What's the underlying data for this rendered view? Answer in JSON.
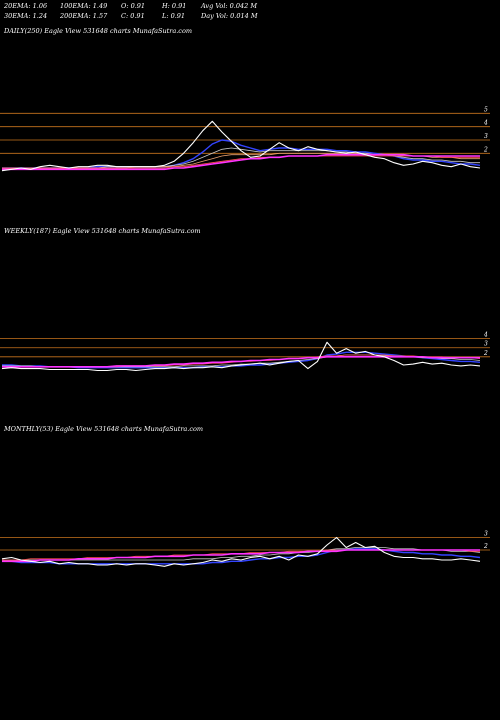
{
  "header": {
    "row1": [
      {
        "label": "20EMA: 1.06"
      },
      {
        "label": "100EMA: 1.49"
      },
      {
        "label": "O: 0.91"
      },
      {
        "label": "H: 0.91"
      },
      {
        "label": "Avg Vol: 0.042  M"
      }
    ],
    "row2": [
      {
        "label": "30EMA: 1.24"
      },
      {
        "label": "200EMA: 1.57"
      },
      {
        "label": "C: 0.91"
      },
      {
        "label": "L: 0.91"
      },
      {
        "label": "Day Vol: 0.014  M"
      }
    ]
  },
  "colors": {
    "background": "#000000",
    "level_line": "#c8741e",
    "price": "#ffffff",
    "ema_blue": "#3344ff",
    "ema_magenta": "#ff33ff",
    "ema_gray": "#c8c8c8",
    "ema_orange": "#e8a070",
    "ema_red": "#ff5050"
  },
  "chart_data": [
    {
      "type": "line",
      "panel": "daily",
      "title": "DAILY(250) Eagle  View  531648  charts MunafaSutra.com",
      "y_ticks": [
        "5",
        "4",
        "3",
        "2"
      ],
      "ylim": [
        0,
        6
      ],
      "levels": [
        5,
        4,
        3,
        2
      ],
      "series": [
        {
          "role": "price",
          "values": [
            0.7,
            0.8,
            0.9,
            0.8,
            1.0,
            1.1,
            1.0,
            0.9,
            1.0,
            1.0,
            1.1,
            1.1,
            1.0,
            1.0,
            1.0,
            1.0,
            1.0,
            1.1,
            1.4,
            2.0,
            2.8,
            3.7,
            4.4,
            3.6,
            2.9,
            2.2,
            1.7,
            1.8,
            2.3,
            2.8,
            2.4,
            2.2,
            2.5,
            2.3,
            2.2,
            2.1,
            2.0,
            2.1,
            1.9,
            1.7,
            1.6,
            1.3,
            1.1,
            1.2,
            1.4,
            1.3,
            1.1,
            1.0,
            1.2,
            1.0,
            0.9
          ]
        },
        {
          "role": "ema_blue",
          "values": [
            0.9,
            0.9,
            0.9,
            0.9,
            0.9,
            0.9,
            0.9,
            0.9,
            0.9,
            0.9,
            1.0,
            1.0,
            1.0,
            1.0,
            1.0,
            1.0,
            1.0,
            1.0,
            1.1,
            1.3,
            1.6,
            2.1,
            2.7,
            3.0,
            2.9,
            2.6,
            2.4,
            2.2,
            2.3,
            2.4,
            2.4,
            2.3,
            2.3,
            2.3,
            2.3,
            2.2,
            2.2,
            2.1,
            2.1,
            2.0,
            1.9,
            1.8,
            1.6,
            1.5,
            1.5,
            1.4,
            1.4,
            1.3,
            1.2,
            1.2,
            1.1
          ]
        },
        {
          "role": "ema_gray",
          "values": [
            0.9,
            0.9,
            0.9,
            0.9,
            0.9,
            0.9,
            0.9,
            0.9,
            0.9,
            0.9,
            0.9,
            1.0,
            1.0,
            1.0,
            1.0,
            1.0,
            1.0,
            1.0,
            1.1,
            1.2,
            1.4,
            1.7,
            2.0,
            2.3,
            2.4,
            2.3,
            2.2,
            2.1,
            2.2,
            2.2,
            2.2,
            2.2,
            2.2,
            2.2,
            2.2,
            2.1,
            2.1,
            2.0,
            2.0,
            1.9,
            1.9,
            1.8,
            1.7,
            1.6,
            1.6,
            1.5,
            1.5,
            1.4,
            1.4,
            1.3,
            1.3
          ]
        },
        {
          "role": "ema_orange",
          "values": [
            0.9,
            0.9,
            0.9,
            0.9,
            0.9,
            0.9,
            0.9,
            0.9,
            0.9,
            0.9,
            0.9,
            0.9,
            0.9,
            0.9,
            1.0,
            1.0,
            1.0,
            1.0,
            1.0,
            1.1,
            1.2,
            1.4,
            1.6,
            1.8,
            1.9,
            1.9,
            1.9,
            1.9,
            1.9,
            2.0,
            2.0,
            2.0,
            2.0,
            2.0,
            2.0,
            2.0,
            2.0,
            2.0,
            1.9,
            1.9,
            1.9,
            1.9,
            1.8,
            1.8,
            1.8,
            1.7,
            1.7,
            1.7,
            1.6,
            1.6,
            1.6
          ]
        },
        {
          "role": "ema_red",
          "values": [
            0.9,
            0.9,
            0.9,
            0.9,
            0.9,
            0.9,
            0.9,
            0.9,
            0.9,
            0.9,
            0.9,
            0.9,
            0.9,
            0.9,
            0.9,
            0.9,
            0.9,
            0.9,
            1.0,
            1.0,
            1.1,
            1.2,
            1.3,
            1.4,
            1.5,
            1.6,
            1.6,
            1.7,
            1.7,
            1.7,
            1.8,
            1.8,
            1.8,
            1.8,
            1.8,
            1.8,
            1.8,
            1.8,
            1.8,
            1.8,
            1.8,
            1.8,
            1.8,
            1.8,
            1.8,
            1.8,
            1.7,
            1.7,
            1.7,
            1.7,
            1.7
          ]
        },
        {
          "role": "ema_magenta",
          "values": [
            0.8,
            0.8,
            0.8,
            0.8,
            0.8,
            0.8,
            0.8,
            0.8,
            0.8,
            0.8,
            0.8,
            0.8,
            0.8,
            0.8,
            0.8,
            0.8,
            0.8,
            0.8,
            0.9,
            0.9,
            1.0,
            1.1,
            1.2,
            1.3,
            1.4,
            1.5,
            1.6,
            1.6,
            1.7,
            1.7,
            1.8,
            1.8,
            1.8,
            1.8,
            1.9,
            1.9,
            1.9,
            1.9,
            1.9,
            1.9,
            1.9,
            1.9,
            1.9,
            1.8,
            1.8,
            1.8,
            1.8,
            1.8,
            1.8,
            1.8,
            1.8
          ]
        }
      ]
    },
    {
      "type": "line",
      "panel": "weekly",
      "title": "WEEKLY(187) Eagle  View  531648  charts MunafaSutra.com",
      "y_ticks": [
        "4",
        "3",
        "2"
      ],
      "ylim": [
        0,
        5.5
      ],
      "levels": [
        4,
        3,
        2
      ],
      "series": [
        {
          "role": "price",
          "values": [
            0.7,
            0.8,
            0.7,
            0.7,
            0.7,
            0.6,
            0.6,
            0.6,
            0.6,
            0.6,
            0.5,
            0.5,
            0.6,
            0.6,
            0.5,
            0.6,
            0.7,
            0.7,
            0.8,
            0.7,
            0.8,
            0.8,
            0.9,
            0.8,
            1.0,
            1.1,
            1.2,
            1.3,
            1.1,
            1.3,
            1.5,
            1.6,
            0.7,
            1.5,
            3.6,
            2.4,
            2.9,
            2.4,
            2.6,
            2.2,
            2.0,
            1.6,
            1.1,
            1.2,
            1.4,
            1.2,
            1.3,
            1.1,
            1.0,
            1.1,
            1.0
          ]
        },
        {
          "role": "ema_blue",
          "values": [
            1.1,
            1.1,
            1.0,
            1.0,
            1.0,
            0.9,
            0.9,
            0.9,
            0.8,
            0.8,
            0.8,
            0.8,
            0.8,
            0.8,
            0.8,
            0.8,
            0.8,
            0.8,
            0.8,
            0.8,
            0.8,
            0.9,
            0.9,
            0.9,
            1.0,
            1.0,
            1.1,
            1.1,
            1.2,
            1.3,
            1.4,
            1.5,
            1.6,
            1.8,
            2.2,
            2.3,
            2.5,
            2.5,
            2.5,
            2.4,
            2.3,
            2.2,
            2.1,
            2.0,
            1.9,
            1.8,
            1.7,
            1.6,
            1.5,
            1.5,
            1.4
          ]
        },
        {
          "role": "ema_gray",
          "values": [
            1.0,
            1.0,
            1.0,
            1.0,
            0.9,
            0.9,
            0.9,
            0.9,
            0.9,
            0.9,
            0.9,
            0.9,
            0.9,
            0.9,
            0.9,
            0.9,
            0.9,
            0.9,
            0.9,
            1.0,
            1.0,
            1.0,
            1.0,
            1.1,
            1.1,
            1.2,
            1.2,
            1.3,
            1.3,
            1.4,
            1.5,
            1.6,
            1.7,
            1.8,
            2.0,
            2.1,
            2.2,
            2.2,
            2.2,
            2.2,
            2.1,
            2.1,
            2.0,
            2.0,
            1.9,
            1.9,
            1.8,
            1.8,
            1.7,
            1.7,
            1.6
          ]
        },
        {
          "role": "ema_red",
          "values": [
            0.9,
            0.9,
            0.9,
            0.9,
            0.9,
            0.9,
            0.9,
            0.9,
            0.9,
            0.9,
            0.9,
            0.9,
            0.9,
            1.0,
            1.0,
            1.0,
            1.0,
            1.0,
            1.1,
            1.1,
            1.2,
            1.2,
            1.3,
            1.3,
            1.4,
            1.5,
            1.5,
            1.6,
            1.6,
            1.7,
            1.8,
            1.8,
            1.9,
            2.0,
            2.1,
            2.1,
            2.2,
            2.2,
            2.2,
            2.2,
            2.2,
            2.1,
            2.1,
            2.1,
            2.0,
            2.0,
            2.0,
            1.9,
            1.9,
            1.9,
            1.8
          ]
        },
        {
          "role": "ema_magenta",
          "values": [
            0.9,
            0.9,
            0.9,
            0.9,
            0.9,
            0.9,
            0.9,
            0.9,
            0.9,
            0.9,
            0.9,
            0.9,
            1.0,
            1.0,
            1.0,
            1.0,
            1.1,
            1.1,
            1.2,
            1.2,
            1.3,
            1.3,
            1.4,
            1.4,
            1.5,
            1.5,
            1.6,
            1.6,
            1.7,
            1.7,
            1.8,
            1.8,
            1.9,
            1.9,
            2.0,
            2.0,
            2.0,
            2.0,
            2.0,
            2.0,
            2.0,
            2.0,
            2.0,
            2.0,
            2.0,
            1.9,
            1.9,
            1.9,
            1.9,
            1.9,
            1.9
          ]
        }
      ]
    },
    {
      "type": "line",
      "panel": "monthly",
      "title": "MONTHLY(53) Eagle  View  531648  charts MunafaSutra.com",
      "y_ticks": [
        "3",
        "2"
      ],
      "ylim": [
        0,
        4
      ],
      "levels": [
        3,
        2
      ],
      "series": [
        {
          "role": "price",
          "values": [
            1.3,
            1.4,
            1.2,
            1.1,
            1.0,
            1.1,
            0.9,
            1.0,
            0.9,
            0.9,
            0.8,
            0.8,
            0.9,
            0.8,
            0.9,
            0.9,
            0.8,
            0.7,
            0.9,
            0.8,
            0.9,
            1.0,
            1.2,
            1.1,
            1.3,
            1.2,
            1.4,
            1.5,
            1.3,
            1.5,
            1.2,
            1.6,
            1.5,
            1.7,
            2.4,
            3.0,
            2.2,
            2.6,
            2.2,
            2.3,
            1.8,
            1.5,
            1.4,
            1.4,
            1.3,
            1.3,
            1.2,
            1.2,
            1.3,
            1.2,
            1.1
          ]
        },
        {
          "role": "ema_blue",
          "values": [
            1.1,
            1.1,
            1.0,
            1.0,
            1.0,
            1.0,
            0.9,
            0.9,
            0.9,
            0.9,
            0.9,
            0.9,
            0.9,
            0.9,
            0.9,
            0.9,
            0.9,
            0.9,
            0.9,
            0.9,
            0.9,
            0.9,
            1.0,
            1.0,
            1.1,
            1.1,
            1.2,
            1.3,
            1.3,
            1.4,
            1.4,
            1.5,
            1.5,
            1.6,
            1.8,
            2.0,
            2.0,
            2.1,
            2.1,
            2.1,
            2.0,
            1.9,
            1.8,
            1.8,
            1.7,
            1.7,
            1.6,
            1.6,
            1.5,
            1.5,
            1.4
          ]
        },
        {
          "role": "ema_gray",
          "values": [
            1.2,
            1.2,
            1.2,
            1.2,
            1.2,
            1.2,
            1.2,
            1.2,
            1.2,
            1.2,
            1.2,
            1.2,
            1.2,
            1.2,
            1.2,
            1.2,
            1.2,
            1.2,
            1.2,
            1.2,
            1.3,
            1.3,
            1.3,
            1.4,
            1.4,
            1.5,
            1.5,
            1.6,
            1.6,
            1.7,
            1.7,
            1.8,
            1.8,
            1.9,
            2.0,
            2.1,
            2.1,
            2.2,
            2.2,
            2.2,
            2.2,
            2.1,
            2.1,
            2.1,
            2.0,
            2.0,
            2.0,
            1.9,
            1.9,
            1.9,
            1.8
          ]
        },
        {
          "role": "ema_red",
          "values": [
            1.2,
            1.2,
            1.2,
            1.3,
            1.3,
            1.3,
            1.3,
            1.3,
            1.3,
            1.4,
            1.4,
            1.4,
            1.4,
            1.4,
            1.5,
            1.5,
            1.5,
            1.5,
            1.6,
            1.6,
            1.6,
            1.6,
            1.7,
            1.7,
            1.7,
            1.7,
            1.8,
            1.8,
            1.8,
            1.8,
            1.9,
            1.9,
            1.9,
            1.9,
            2.0,
            2.0,
            2.0,
            2.0,
            2.0,
            2.0,
            2.0,
            2.0,
            2.0,
            2.0,
            2.0,
            2.0,
            2.0,
            2.0,
            2.0,
            1.9,
            1.9
          ]
        },
        {
          "role": "ema_magenta",
          "values": [
            1.1,
            1.1,
            1.1,
            1.1,
            1.2,
            1.2,
            1.2,
            1.2,
            1.3,
            1.3,
            1.3,
            1.3,
            1.4,
            1.4,
            1.4,
            1.4,
            1.5,
            1.5,
            1.5,
            1.5,
            1.6,
            1.6,
            1.6,
            1.6,
            1.7,
            1.7,
            1.7,
            1.7,
            1.8,
            1.8,
            1.8,
            1.8,
            1.9,
            1.9,
            1.9,
            1.9,
            2.0,
            2.0,
            2.0,
            2.0,
            2.0,
            2.0,
            2.0,
            2.0,
            2.0,
            2.0,
            2.0,
            2.0,
            2.0,
            2.0,
            2.0
          ]
        }
      ]
    }
  ]
}
